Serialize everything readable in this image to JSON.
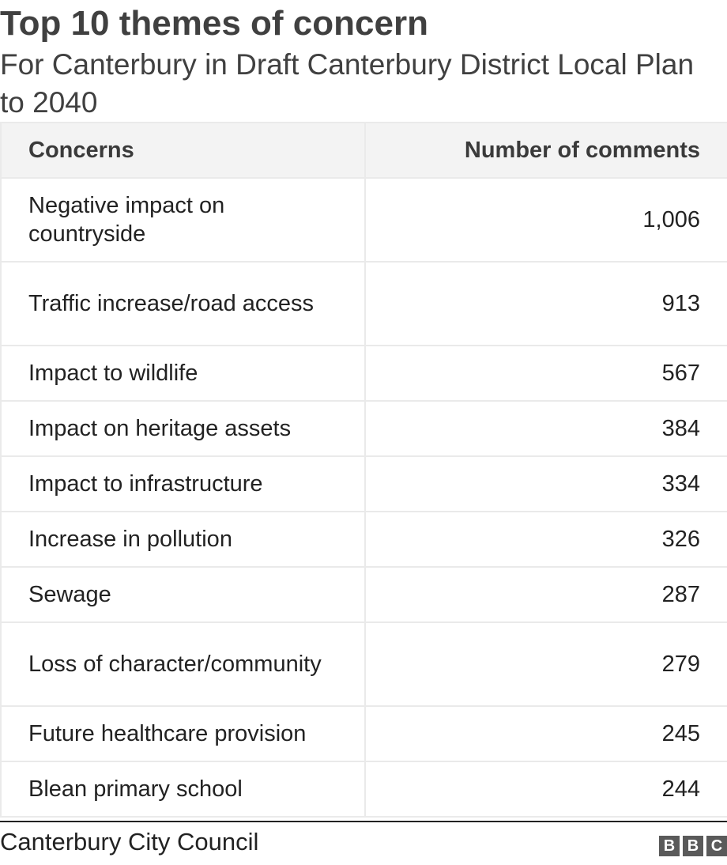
{
  "title": "Top 10 themes of concern",
  "subtitle": "For Canterbury in Draft Canterbury District Local Plan to 2040",
  "table": {
    "headers": [
      "Concerns",
      "Number of comments"
    ],
    "rows": [
      {
        "concern": "Negative impact on countryside",
        "count": "1,006"
      },
      {
        "concern": "Traffic increase/road access",
        "count": "913"
      },
      {
        "concern": "Impact to wildlife",
        "count": "567"
      },
      {
        "concern": "Impact on heritage assets",
        "count": "384"
      },
      {
        "concern": "Impact to infrastructure",
        "count": "334"
      },
      {
        "concern": "Increase in pollution",
        "count": "326"
      },
      {
        "concern": "Sewage",
        "count": "287"
      },
      {
        "concern": "Loss of character/community",
        "count": "279"
      },
      {
        "concern": "Future healthcare provision",
        "count": "245"
      },
      {
        "concern": "Blean primary school",
        "count": "244"
      }
    ]
  },
  "source": "Canterbury City Council",
  "logo": {
    "letters": [
      "B",
      "B",
      "C"
    ],
    "color": "#5a5a5a"
  },
  "chart_data": {
    "type": "table",
    "title": "Top 10 themes of concern",
    "subtitle": "For Canterbury in Draft Canterbury District Local Plan to 2040",
    "columns": [
      "Concerns",
      "Number of comments"
    ],
    "categories": [
      "Negative impact on countryside",
      "Traffic increase/road access",
      "Impact to wildlife",
      "Impact on heritage assets",
      "Impact to infrastructure",
      "Increase in pollution",
      "Sewage",
      "Loss of character/community",
      "Future healthcare provision",
      "Blean primary school"
    ],
    "values": [
      1006,
      913,
      567,
      384,
      334,
      326,
      287,
      279,
      245,
      244
    ]
  }
}
